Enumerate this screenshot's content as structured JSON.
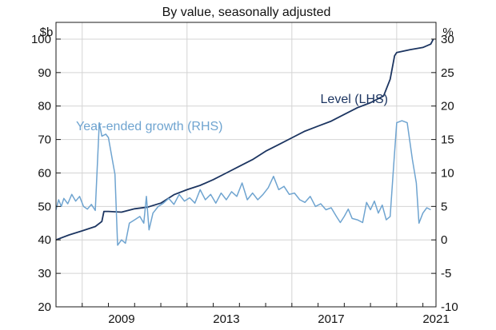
{
  "chart_data": {
    "type": "line",
    "title": "By value, seasonally adjusted",
    "left_axis": {
      "unit": "$b",
      "ylim": [
        20,
        105
      ],
      "ticks": [
        20,
        30,
        40,
        50,
        60,
        70,
        80,
        90,
        100
      ],
      "tick_labels": [
        "20",
        "30",
        "40",
        "50",
        "60",
        "70",
        "80",
        "90",
        "100"
      ]
    },
    "right_axis": {
      "unit": "%",
      "ylim": [
        -10,
        32.5
      ],
      "ticks": [
        -10,
        -5,
        0,
        5,
        10,
        15,
        20,
        25,
        30
      ],
      "tick_labels": [
        "-10",
        "-5",
        "0",
        "5",
        "10",
        "15",
        "20",
        "25",
        "30"
      ]
    },
    "x_axis": {
      "xlim": [
        2007.0,
        2021.5
      ],
      "ticks": [
        2009,
        2013,
        2017,
        2021
      ],
      "tick_labels": [
        "2009",
        "2013",
        "2017",
        "2021"
      ]
    },
    "grid": true,
    "series": [
      {
        "name": "Level (LHS)",
        "axis": "left",
        "color": "#1c3561",
        "points": [
          [
            2007.0,
            40.0
          ],
          [
            2007.5,
            41.5
          ],
          [
            2008.0,
            42.7
          ],
          [
            2008.5,
            44.0
          ],
          [
            2008.75,
            45.5
          ],
          [
            2008.83,
            48.5
          ],
          [
            2009.0,
            48.5
          ],
          [
            2009.5,
            48.3
          ],
          [
            2010.0,
            49.3
          ],
          [
            2010.5,
            49.8
          ],
          [
            2011.0,
            51.0
          ],
          [
            2011.5,
            53.5
          ],
          [
            2012.0,
            55.0
          ],
          [
            2012.5,
            56.3
          ],
          [
            2013.0,
            58.0
          ],
          [
            2013.5,
            60.0
          ],
          [
            2014.0,
            62.0
          ],
          [
            2014.5,
            64.0
          ],
          [
            2015.0,
            66.5
          ],
          [
            2015.5,
            68.5
          ],
          [
            2016.0,
            70.5
          ],
          [
            2016.5,
            72.5
          ],
          [
            2017.0,
            74.0
          ],
          [
            2017.5,
            75.5
          ],
          [
            2018.0,
            77.5
          ],
          [
            2018.5,
            79.5
          ],
          [
            2019.0,
            81.0
          ],
          [
            2019.5,
            83.0
          ],
          [
            2019.75,
            88.0
          ],
          [
            2019.92,
            95.0
          ],
          [
            2020.0,
            96.0
          ],
          [
            2020.5,
            96.8
          ],
          [
            2021.0,
            97.5
          ],
          [
            2021.3,
            98.5
          ],
          [
            2021.4,
            100.0
          ]
        ]
      },
      {
        "name": "Year-ended growth (RHS)",
        "axis": "right",
        "color": "#6fa4d0",
        "points": [
          [
            2007.0,
            4.5
          ],
          [
            2007.1,
            6.0
          ],
          [
            2007.2,
            5.0
          ],
          [
            2007.3,
            6.2
          ],
          [
            2007.45,
            5.4
          ],
          [
            2007.6,
            6.8
          ],
          [
            2007.75,
            5.8
          ],
          [
            2007.9,
            6.5
          ],
          [
            2008.05,
            5.0
          ],
          [
            2008.2,
            4.6
          ],
          [
            2008.35,
            5.3
          ],
          [
            2008.5,
            4.4
          ],
          [
            2008.65,
            17.5
          ],
          [
            2008.75,
            15.5
          ],
          [
            2008.9,
            15.8
          ],
          [
            2009.0,
            15.3
          ],
          [
            2009.15,
            12.0
          ],
          [
            2009.25,
            9.8
          ],
          [
            2009.35,
            -0.8
          ],
          [
            2009.5,
            0.0
          ],
          [
            2009.65,
            -0.5
          ],
          [
            2009.8,
            2.5
          ],
          [
            2010.0,
            3.0
          ],
          [
            2010.2,
            3.5
          ],
          [
            2010.35,
            2.5
          ],
          [
            2010.45,
            6.5
          ],
          [
            2010.55,
            1.5
          ],
          [
            2010.7,
            4.0
          ],
          [
            2010.9,
            5.0
          ],
          [
            2011.1,
            5.5
          ],
          [
            2011.3,
            6.2
          ],
          [
            2011.5,
            5.3
          ],
          [
            2011.7,
            6.8
          ],
          [
            2011.9,
            5.8
          ],
          [
            2012.1,
            6.3
          ],
          [
            2012.3,
            5.5
          ],
          [
            2012.5,
            7.5
          ],
          [
            2012.7,
            6.0
          ],
          [
            2012.9,
            6.8
          ],
          [
            2013.1,
            5.5
          ],
          [
            2013.3,
            7.0
          ],
          [
            2013.5,
            6.0
          ],
          [
            2013.7,
            7.2
          ],
          [
            2013.9,
            6.5
          ],
          [
            2014.1,
            8.5
          ],
          [
            2014.3,
            6.0
          ],
          [
            2014.5,
            7.0
          ],
          [
            2014.7,
            6.0
          ],
          [
            2014.9,
            6.8
          ],
          [
            2015.1,
            7.8
          ],
          [
            2015.3,
            9.5
          ],
          [
            2015.5,
            7.5
          ],
          [
            2015.7,
            8.0
          ],
          [
            2015.9,
            6.8
          ],
          [
            2016.1,
            7.0
          ],
          [
            2016.3,
            6.0
          ],
          [
            2016.5,
            5.6
          ],
          [
            2016.7,
            6.5
          ],
          [
            2016.9,
            5.0
          ],
          [
            2017.1,
            5.4
          ],
          [
            2017.3,
            4.5
          ],
          [
            2017.5,
            4.8
          ],
          [
            2017.7,
            3.5
          ],
          [
            2017.85,
            2.6
          ],
          [
            2018.0,
            3.5
          ],
          [
            2018.15,
            4.6
          ],
          [
            2018.3,
            3.2
          ],
          [
            2018.5,
            3.0
          ],
          [
            2018.7,
            2.6
          ],
          [
            2018.85,
            5.6
          ],
          [
            2019.0,
            4.5
          ],
          [
            2019.15,
            5.8
          ],
          [
            2019.3,
            4.0
          ],
          [
            2019.45,
            5.2
          ],
          [
            2019.6,
            3.0
          ],
          [
            2019.75,
            3.5
          ],
          [
            2019.9,
            12.0
          ],
          [
            2020.0,
            17.5
          ],
          [
            2020.2,
            17.8
          ],
          [
            2020.4,
            17.5
          ],
          [
            2020.6,
            12.0
          ],
          [
            2020.75,
            8.5
          ],
          [
            2020.85,
            2.5
          ],
          [
            2021.0,
            4.0
          ],
          [
            2021.15,
            4.8
          ],
          [
            2021.3,
            4.5
          ]
        ]
      }
    ]
  }
}
